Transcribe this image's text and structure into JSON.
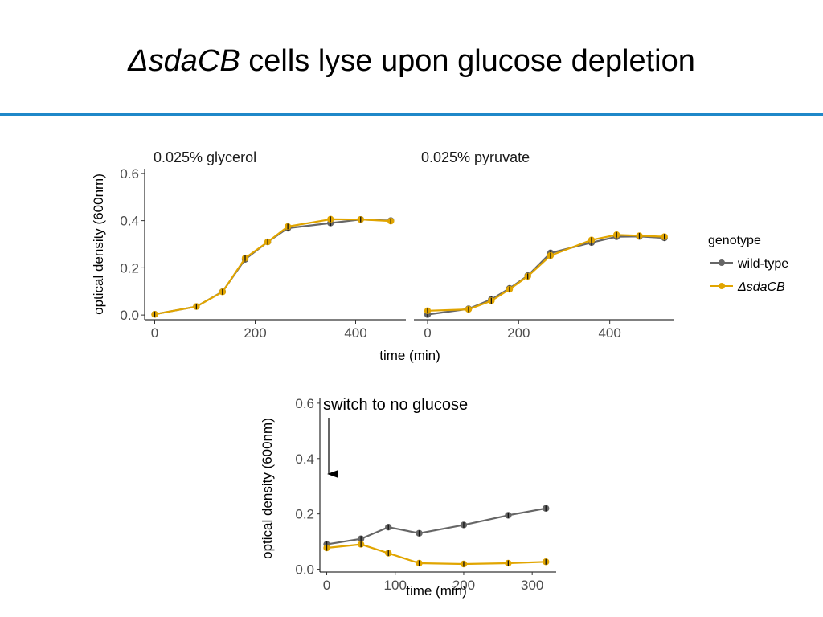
{
  "slide": {
    "title_italic": "ΔsdaCB",
    "title_rest": " cells lyse upon glucose depletion",
    "rule_color": "#1f88c9"
  },
  "chart_data": [
    {
      "type": "line",
      "facet": "0.025% glycerol",
      "ylabel": "optical density (600nm)",
      "xlim": [
        -20,
        500
      ],
      "ylim": [
        -0.02,
        0.62
      ],
      "xticks": [
        0,
        200,
        400
      ],
      "yticks": [
        0.0,
        0.2,
        0.4,
        0.6
      ],
      "ytick_labels": [
        "0.0",
        "0.2",
        "0.4",
        "0.6"
      ],
      "grid": false,
      "series": [
        {
          "name": "wild-type",
          "color": "#666666",
          "points": [
            [
              0,
              0.003
            ],
            [
              83,
              0.036
            ],
            [
              135,
              0.099
            ],
            [
              180,
              0.236
            ],
            [
              225,
              0.31
            ],
            [
              265,
              0.368
            ],
            [
              350,
              0.39
            ],
            [
              410,
              0.405
            ],
            [
              470,
              0.4
            ]
          ]
        },
        {
          "name": "ΔsdaCB",
          "color": "#e1a500",
          "points": [
            [
              0,
              0.003
            ],
            [
              83,
              0.036
            ],
            [
              135,
              0.098
            ],
            [
              180,
              0.241
            ],
            [
              225,
              0.31
            ],
            [
              265,
              0.375
            ],
            [
              350,
              0.406
            ],
            [
              410,
              0.405
            ],
            [
              470,
              0.398
            ]
          ]
        }
      ]
    },
    {
      "type": "line",
      "facet": "0.025% pyruvate",
      "xlim": [
        -30,
        540
      ],
      "ylim": [
        -0.02,
        0.62
      ],
      "xticks": [
        0,
        200,
        400
      ],
      "grid": false,
      "series": [
        {
          "name": "wild-type",
          "color": "#666666",
          "points": [
            [
              0,
              0.002
            ],
            [
              90,
              0.026
            ],
            [
              140,
              0.066
            ],
            [
              180,
              0.113
            ],
            [
              220,
              0.167
            ],
            [
              270,
              0.263
            ],
            [
              360,
              0.307
            ],
            [
              415,
              0.332
            ],
            [
              465,
              0.333
            ],
            [
              520,
              0.327
            ]
          ]
        },
        {
          "name": "ΔsdaCB",
          "color": "#e1a500",
          "points": [
            [
              0,
              0.018
            ],
            [
              90,
              0.024
            ],
            [
              140,
              0.06
            ],
            [
              180,
              0.109
            ],
            [
              220,
              0.164
            ],
            [
              270,
              0.252
            ],
            [
              360,
              0.318
            ],
            [
              415,
              0.34
            ],
            [
              465,
              0.336
            ],
            [
              520,
              0.332
            ]
          ]
        }
      ]
    },
    {
      "type": "line",
      "xlabel": "time (min)",
      "ylabel": "optical density (600nm)",
      "xlim": [
        -10,
        335
      ],
      "ylim": [
        -0.01,
        0.62
      ],
      "xticks": [
        0,
        100,
        200,
        300
      ],
      "yticks": [
        0.0,
        0.2,
        0.4,
        0.6
      ],
      "ytick_labels": [
        "0.0",
        "0.2",
        "0.4",
        "0.6"
      ],
      "grid": false,
      "annotation": "switch to no glucose",
      "series": [
        {
          "name": "wild-type",
          "color": "#666666",
          "points": [
            [
              0,
              0.09
            ],
            [
              50,
              0.11
            ],
            [
              90,
              0.152
            ],
            [
              135,
              0.13
            ],
            [
              200,
              0.16
            ],
            [
              265,
              0.195
            ],
            [
              320,
              0.22
            ]
          ]
        },
        {
          "name": "ΔsdaCB",
          "color": "#e1a500",
          "points": [
            [
              0,
              0.077
            ],
            [
              50,
              0.09
            ],
            [
              90,
              0.058
            ],
            [
              135,
              0.022
            ],
            [
              200,
              0.019
            ],
            [
              265,
              0.022
            ],
            [
              320,
              0.027
            ]
          ]
        }
      ]
    }
  ],
  "top_xlabel": "time (min)",
  "legend": {
    "title": "genotype",
    "position": "right",
    "entries": [
      {
        "label": "wild-type",
        "color": "#666666",
        "italic": false
      },
      {
        "label": "ΔsdaCB",
        "color": "#e1a500",
        "italic": true
      }
    ]
  }
}
